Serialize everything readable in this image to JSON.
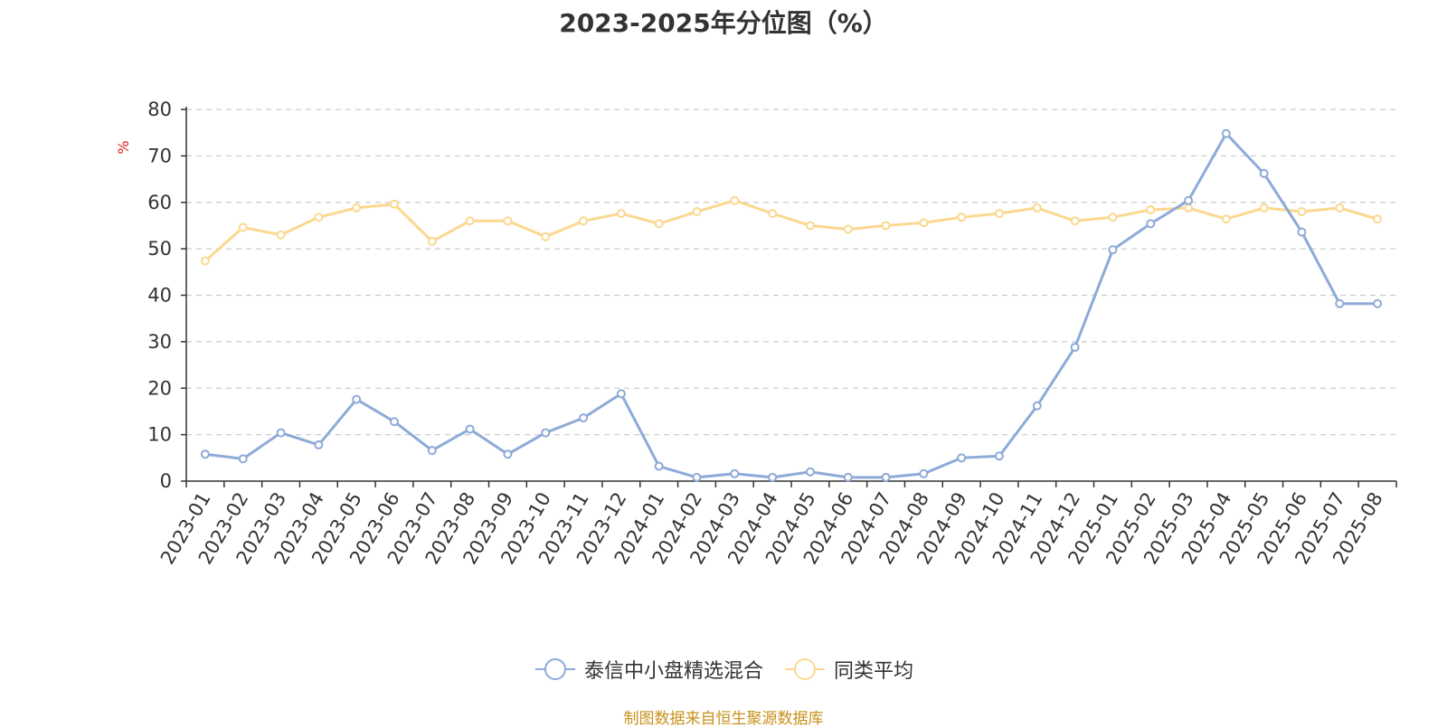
{
  "title": "2023-2025年分位图（%）",
  "source": "制图数据来自恒生聚源数据库",
  "colors": {
    "series1": "#8eaad8",
    "series2": "#fbd890",
    "grid": "#cccccc",
    "axis": "#333333",
    "unit": "#e02020",
    "source": "#c8901a"
  },
  "chart_data": {
    "type": "line",
    "title": "2023-2025年分位图（%）",
    "ylabel": "%",
    "xlabel": "",
    "ylim": [
      0,
      80
    ],
    "yticks": [
      0,
      10,
      20,
      30,
      40,
      50,
      60,
      70,
      80
    ],
    "grid": true,
    "legend_position": "bottom",
    "categories": [
      "2023-01",
      "2023-02",
      "2023-03",
      "2023-04",
      "2023-05",
      "2023-06",
      "2023-07",
      "2023-08",
      "2023-09",
      "2023-10",
      "2023-11",
      "2023-12",
      "2024-01",
      "2024-02",
      "2024-03",
      "2024-04",
      "2024-05",
      "2024-06",
      "2024-07",
      "2024-08",
      "2024-09",
      "2024-10",
      "2024-11",
      "2024-12",
      "2025-01",
      "2025-02",
      "2025-03",
      "2025-04",
      "2025-05",
      "2025-06",
      "2025-07",
      "2025-08"
    ],
    "series": [
      {
        "name": "泰信中小盘精选混合",
        "values": [
          5.8,
          4.8,
          10.4,
          7.8,
          17.6,
          12.8,
          6.6,
          11.2,
          5.8,
          10.4,
          13.6,
          18.8,
          3.2,
          0.8,
          1.6,
          0.8,
          2.0,
          0.8,
          0.8,
          1.6,
          5.0,
          5.4,
          16.2,
          28.8,
          49.8,
          55.4,
          60.4,
          74.8,
          66.2,
          53.6,
          38.2,
          38.2
        ]
      },
      {
        "name": "同类平均",
        "values": [
          47.4,
          54.6,
          53.0,
          56.8,
          58.8,
          59.6,
          51.6,
          56.0,
          56.0,
          52.6,
          56.0,
          57.6,
          55.4,
          58.0,
          60.4,
          57.6,
          55.0,
          54.2,
          55.0,
          55.6,
          56.8,
          57.6,
          58.8,
          56.0,
          56.8,
          58.4,
          58.8,
          56.4,
          58.8,
          58.0,
          58.8,
          56.4
        ]
      }
    ]
  }
}
